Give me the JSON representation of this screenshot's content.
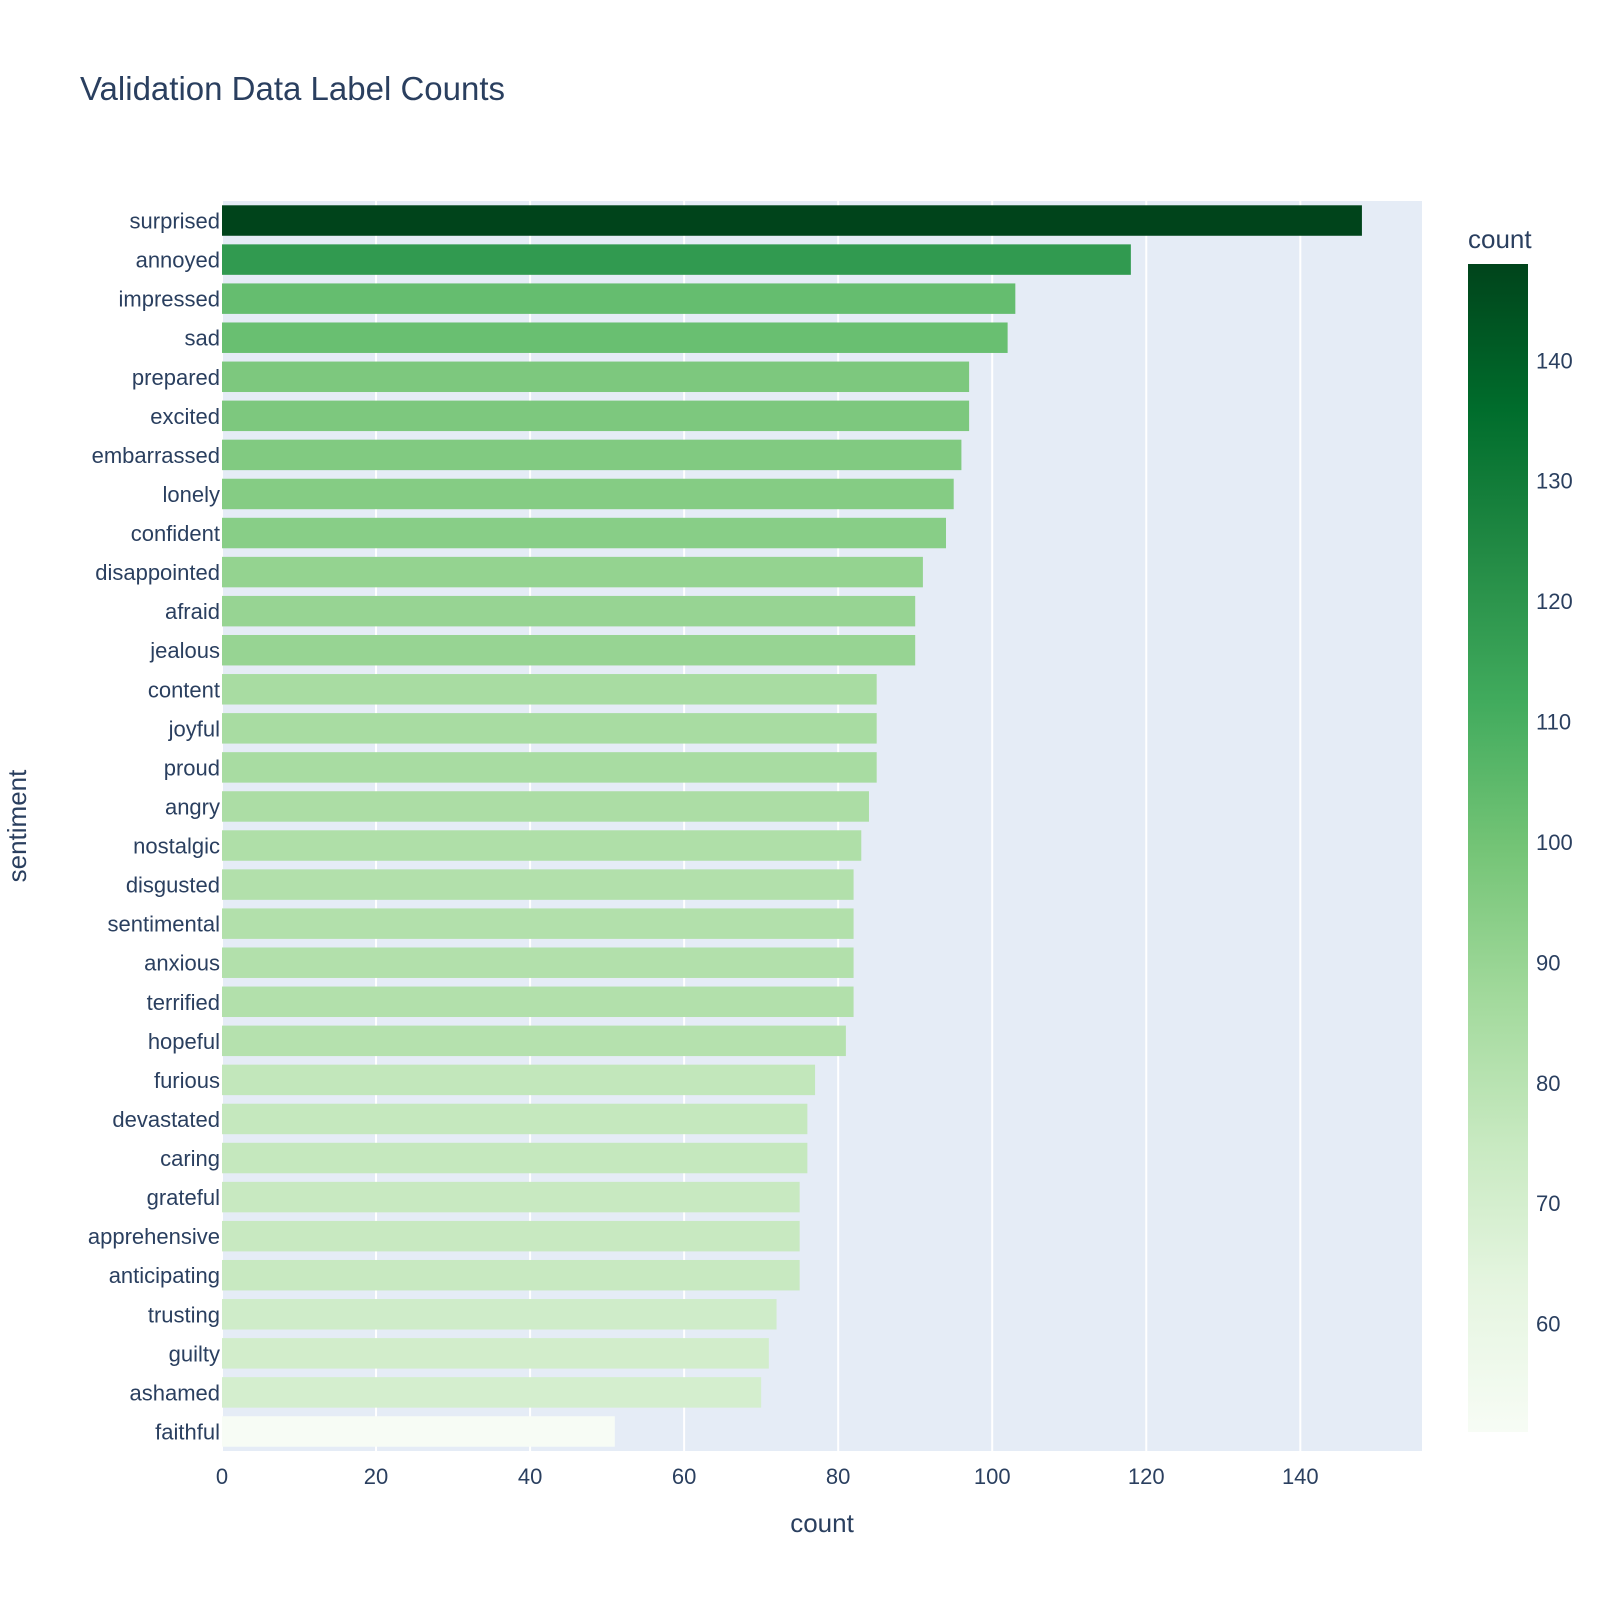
{
  "chart_data": {
    "type": "bar",
    "orientation": "horizontal",
    "title": "Validation Data Label Counts",
    "xlabel": "count",
    "ylabel": "sentiment",
    "xlim": [
      0,
      155.8
    ],
    "xticks": [
      0,
      20,
      40,
      60,
      80,
      100,
      120,
      140
    ],
    "grid": true,
    "plot_background": "#e5ecf6",
    "categories": [
      "surprised",
      "annoyed",
      "impressed",
      "sad",
      "prepared",
      "excited",
      "embarrassed",
      "lonely",
      "confident",
      "disappointed",
      "afraid",
      "jealous",
      "content",
      "joyful",
      "proud",
      "angry",
      "nostalgic",
      "disgusted",
      "sentimental",
      "anxious",
      "terrified",
      "hopeful",
      "furious",
      "devastated",
      "caring",
      "grateful",
      "apprehensive",
      "anticipating",
      "trusting",
      "guilty",
      "ashamed",
      "faithful"
    ],
    "values": [
      148,
      118,
      103,
      102,
      97,
      97,
      96,
      95,
      94,
      91,
      90,
      90,
      85,
      85,
      85,
      84,
      83,
      82,
      82,
      82,
      82,
      81,
      77,
      76,
      76,
      75,
      75,
      75,
      72,
      71,
      70,
      51
    ],
    "colorbar": {
      "title": "count",
      "min": 51,
      "max": 148,
      "ticks": [
        60,
        70,
        80,
        90,
        100,
        110,
        120,
        130,
        140
      ],
      "colorscale": [
        "#f7fcf5",
        "#e5f5e0",
        "#c7e9c0",
        "#a1d99b",
        "#74c476",
        "#41ab5d",
        "#238b45",
        "#006d2c",
        "#00441b"
      ]
    }
  }
}
